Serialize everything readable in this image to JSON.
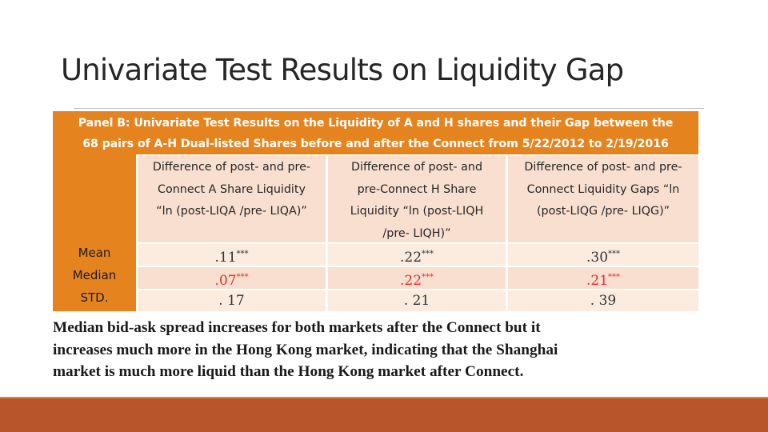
{
  "slide": {
    "title": "Univariate Test Results on Liquidity Gap",
    "panel_header": {
      "line1": "Panel B: Univariate Test Results on the Liquidity of A and H shares and their Gap between the",
      "line2": "68 pairs of A-H Dual-listed Shares before and after the Connect from 5/22/2012 to 2/19/2016"
    },
    "columns": [
      {
        "lines": [
          "Difference of post- and pre-",
          "Connect A Share Liquidity",
          "“ln (post-LIQA /pre- LIQA)”"
        ]
      },
      {
        "lines": [
          "Difference of post- and",
          "pre-Connect H Share",
          "Liquidity “ln (post-LIQH",
          "/pre- LIQH)”"
        ]
      },
      {
        "lines": [
          "Difference of post- and pre-",
          "Connect Liquidity Gaps “ln",
          "(post-LIQG /pre- LIQG)”"
        ]
      }
    ],
    "rows": [
      {
        "label": "Mean",
        "values": [
          ".11",
          ".22",
          ".30"
        ],
        "stars": [
          "***",
          "***",
          "***"
        ]
      },
      {
        "label": "Median",
        "values": [
          ".07",
          ".22",
          ".21"
        ],
        "stars": [
          "***",
          "***",
          "***"
        ]
      },
      {
        "label": "STD.",
        "values": [
          ". 17",
          ". 21",
          ". 39"
        ],
        "stars": [
          "",
          "",
          ""
        ]
      }
    ],
    "body_text": "Median bid-ask spread increases for both markets after the Connect but it\nincreases much more in the Hong Kong market, indicating that the Shanghai\nmarket is much more liquid than the Hong Kong market after Connect.",
    "colors": {
      "accent_orange": "#e5841e",
      "footer_rust": "#b8552b",
      "highlight_red": "#e03030"
    }
  }
}
